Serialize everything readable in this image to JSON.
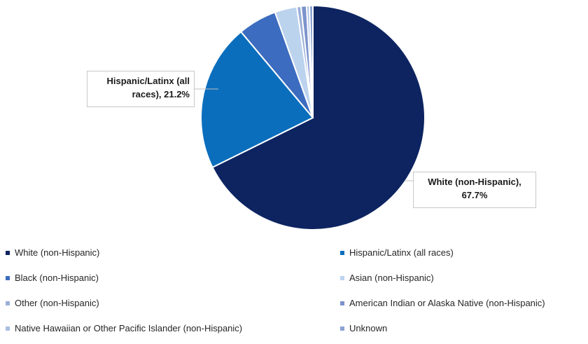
{
  "chart_data": {
    "type": "pie",
    "title": "",
    "slices": [
      {
        "label": "White (non-Hispanic)",
        "value": 67.7,
        "color": "#0d2461"
      },
      {
        "label": "Hispanic/Latinx (all races)",
        "value": 21.2,
        "color": "#0a6ebd"
      },
      {
        "label": "Black (non-Hispanic)",
        "value": 5.6,
        "color": "#3c6cbf"
      },
      {
        "label": "Asian (non-Hispanic)",
        "value": 3.2,
        "color": "#bcd3ee"
      },
      {
        "label": "Other (non-Hispanic)",
        "value": 0.6,
        "color": "#9bb0d8"
      },
      {
        "label": "American Indian or Alaska Native (non-Hispanic)",
        "value": 0.8,
        "color": "#7c93cc"
      },
      {
        "label": "Native Hawaiian or Other Pacific Islander (non-Hispanic)",
        "value": 0.4,
        "color": "#a9bee2"
      },
      {
        "label": "Unknown",
        "value": 0.5,
        "color": "#8aa3d3"
      }
    ],
    "data_labels": {
      "white": "White (non-Hispanic), 67.7%",
      "hispanic": "Hispanic/Latinx (all races), 21.2%"
    },
    "legend": {
      "position": "bottom",
      "columns": 2
    }
  }
}
